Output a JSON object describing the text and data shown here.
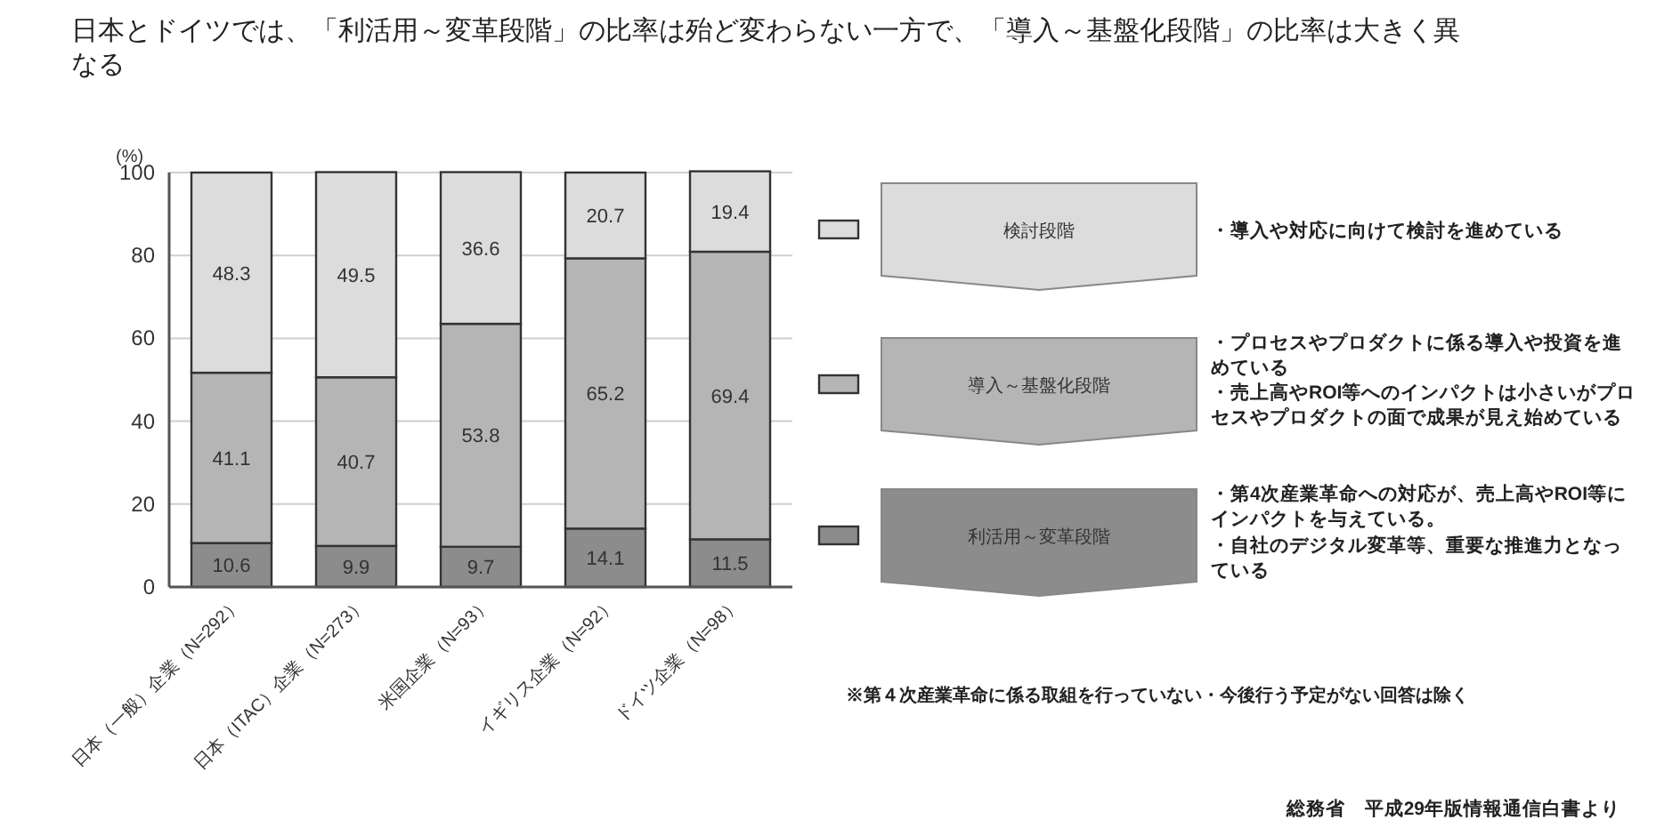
{
  "chart_data": {
    "type": "bar",
    "stacked": true,
    "title": "日本とドイツでは、「利活用～変革段階」の比率は殆ど変わらない一方で、「導入～基盤化段階」の比率は大きく異なる",
    "ylabel": "(%)",
    "categories": [
      "日本（一般）企業（N=292）",
      "日本（ITAC）企業（N=273）",
      "米国企業（N=93）",
      "イギリス企業（N=92）",
      "ドイツ企業（N=98）"
    ],
    "series": [
      {
        "name": "利活用～変革段階",
        "color": "#8c8c8c",
        "values": [
          10.6,
          9.9,
          9.7,
          14.1,
          11.5
        ]
      },
      {
        "name": "導入～基盤化段階",
        "color": "#b5b5b5",
        "values": [
          41.1,
          40.7,
          53.8,
          65.2,
          69.4
        ]
      },
      {
        "name": "検討段階",
        "color": "#dcdcdc",
        "values": [
          48.3,
          49.5,
          36.6,
          20.7,
          19.4
        ]
      }
    ],
    "ylim": [
      0,
      100
    ],
    "yticks": [
      0,
      20,
      40,
      60,
      80,
      100
    ],
    "grid": "y",
    "data_labels": true,
    "legend": "right",
    "annotations": [
      "・導入や対応に向けて検討を進めている",
      "・プロセスやプロダクトに係る導入や投資を進めている",
      "・売上高やROI等へのインパクトは小さいがプロセスやプロダクトの面で成果が見え始めている",
      "・第4次産業革命への対応が、売上高やROI等にインパクトを与えている。",
      "・自社のデジタル変革等、重要な推進力となっている",
      "※第４次産業革命に係る取組を行っていない・今後行う予定がない回答は除く",
      "総務省　平成29年版情報通信白書より"
    ]
  }
}
